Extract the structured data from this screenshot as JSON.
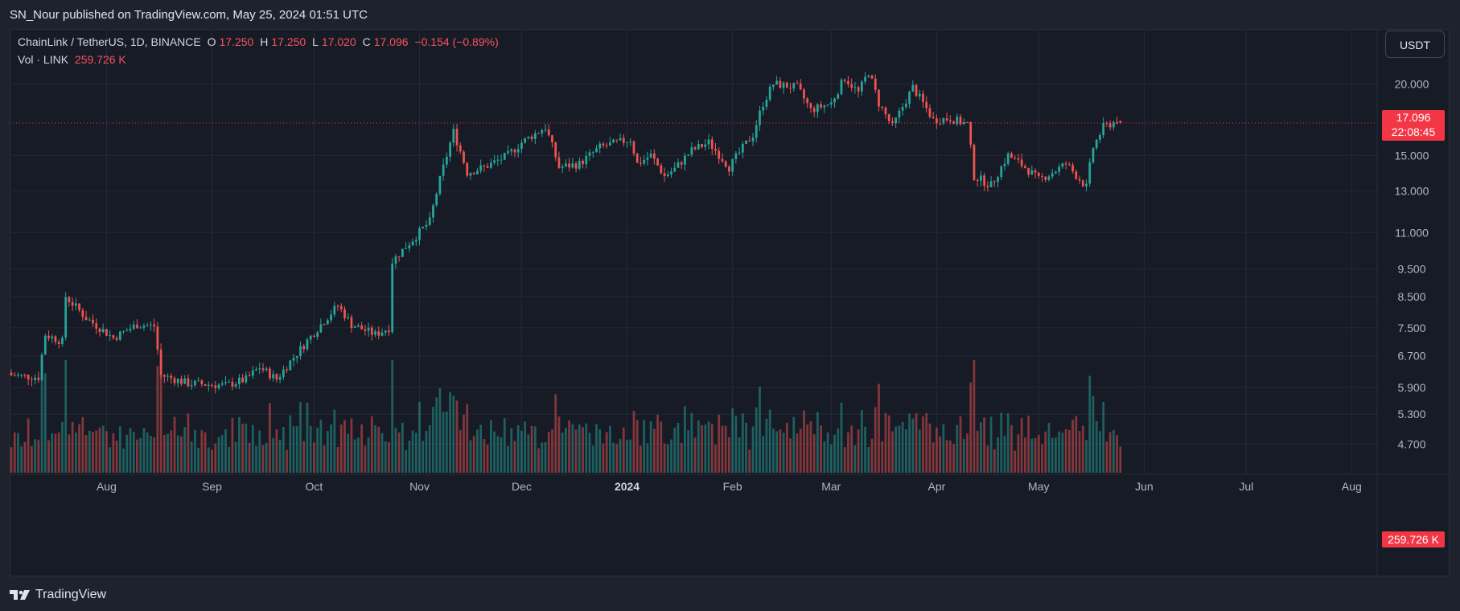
{
  "header": {
    "published_line": "SN_Nour published on TradingView.com, May 25, 2024 01:51 UTC"
  },
  "legend": {
    "symbol": "ChainLink / TetherUS, 1D, BINANCE",
    "o_label": "O",
    "o": "17.250",
    "h_label": "H",
    "h": "17.250",
    "l_label": "L",
    "l": "17.020",
    "c_label": "C",
    "c": "17.096",
    "change": "−0.154 (−0.89%)",
    "vol_label": "Vol · LINK",
    "vol": "259.726 K"
  },
  "currency_button": "USDT",
  "price_badge": {
    "price": "17.096",
    "countdown": "22:08:45"
  },
  "volume_badge": "259.726 K",
  "footer": {
    "brand": "TradingView"
  },
  "colors": {
    "up": "#26a69a",
    "down": "#ef5350",
    "background": "#171b26",
    "grid": "#242936",
    "last_price": "#f23645"
  },
  "chart_data": {
    "type": "candlestick",
    "symbol": "LINK/USDT",
    "timeframe": "1D",
    "y_scale": "log",
    "y_ticks": [
      "20.000",
      "15.000",
      "13.000",
      "11.000",
      "9.500",
      "8.500",
      "7.500",
      "6.700",
      "5.900",
      "5.300",
      "4.700"
    ],
    "x_ticks": [
      {
        "label": "Aug",
        "date": "2023-08-01",
        "bold": false
      },
      {
        "label": "Sep",
        "date": "2023-09-01",
        "bold": false
      },
      {
        "label": "Oct",
        "date": "2023-10-01",
        "bold": false
      },
      {
        "label": "Nov",
        "date": "2023-11-01",
        "bold": false
      },
      {
        "label": "Dec",
        "date": "2023-12-01",
        "bold": false
      },
      {
        "label": "2024",
        "date": "2024-01-01",
        "bold": true
      },
      {
        "label": "Feb",
        "date": "2024-02-01",
        "bold": false
      },
      {
        "label": "Mar",
        "date": "2024-03-01",
        "bold": false
      },
      {
        "label": "Apr",
        "date": "2024-04-01",
        "bold": false
      },
      {
        "label": "May",
        "date": "2024-05-01",
        "bold": false
      },
      {
        "label": "Jun",
        "date": "2024-06-01",
        "bold": false
      },
      {
        "label": "Jul",
        "date": "2024-07-01",
        "bold": false
      },
      {
        "label": "Aug",
        "date": "2024-08-01",
        "bold": false
      }
    ],
    "start_date": "2023-07-04",
    "end_date": "2024-05-25",
    "x_range": [
      "2023-07-04",
      "2024-08-08"
    ],
    "close_anchors": [
      [
        "2023-07-04",
        6.2
      ],
      [
        "2023-07-12",
        6.15
      ],
      [
        "2023-07-14",
        7.3
      ],
      [
        "2023-07-19",
        7.1
      ],
      [
        "2023-07-20",
        8.5
      ],
      [
        "2023-07-26",
        7.8
      ],
      [
        "2023-08-03",
        7.2
      ],
      [
        "2023-08-10",
        7.6
      ],
      [
        "2023-08-15",
        7.55
      ],
      [
        "2023-08-17",
        6.2
      ],
      [
        "2023-08-25",
        6.0
      ],
      [
        "2023-09-05",
        5.95
      ],
      [
        "2023-09-11",
        6.1
      ],
      [
        "2023-09-15",
        6.4
      ],
      [
        "2023-09-20",
        6.1
      ],
      [
        "2023-09-28",
        7.0
      ],
      [
        "2023-10-03",
        7.6
      ],
      [
        "2023-10-08",
        8.2
      ],
      [
        "2023-10-12",
        7.6
      ],
      [
        "2023-10-19",
        7.3
      ],
      [
        "2023-10-23",
        7.5
      ],
      [
        "2023-10-24",
        9.8
      ],
      [
        "2023-10-30",
        10.7
      ],
      [
        "2023-11-04",
        11.5
      ],
      [
        "2023-11-09",
        15.0
      ],
      [
        "2023-11-11",
        16.5
      ],
      [
        "2023-11-15",
        14.0
      ],
      [
        "2023-11-20",
        14.3
      ],
      [
        "2023-11-27",
        15.0
      ],
      [
        "2023-12-01",
        15.8
      ],
      [
        "2023-12-08",
        16.8
      ],
      [
        "2023-12-12",
        14.3
      ],
      [
        "2023-12-18",
        14.5
      ],
      [
        "2023-12-24",
        15.5
      ],
      [
        "2024-01-02",
        16.0
      ],
      [
        "2024-01-04",
        14.5
      ],
      [
        "2024-01-08",
        15.0
      ],
      [
        "2024-01-12",
        13.8
      ],
      [
        "2024-01-15",
        14.2
      ],
      [
        "2024-01-20",
        15.3
      ],
      [
        "2024-01-25",
        15.8
      ],
      [
        "2024-01-31",
        14.3
      ],
      [
        "2024-02-07",
        16.3
      ],
      [
        "2024-02-10",
        18.5
      ],
      [
        "2024-02-13",
        20.0
      ],
      [
        "2024-02-20",
        19.7
      ],
      [
        "2024-02-24",
        18.0
      ],
      [
        "2024-03-01",
        18.5
      ],
      [
        "2024-03-05",
        20.5
      ],
      [
        "2024-03-09",
        19.3
      ],
      [
        "2024-03-12",
        21.0
      ],
      [
        "2024-03-15",
        18.5
      ],
      [
        "2024-03-19",
        16.8
      ],
      [
        "2024-03-25",
        19.7
      ],
      [
        "2024-03-31",
        17.3
      ],
      [
        "2024-04-05",
        17.4
      ],
      [
        "2024-04-10",
        17.0
      ],
      [
        "2024-04-12",
        13.8
      ],
      [
        "2024-04-17",
        13.3
      ],
      [
        "2024-04-22",
        15.0
      ],
      [
        "2024-04-27",
        14.3
      ],
      [
        "2024-05-01",
        13.6
      ],
      [
        "2024-05-05",
        14.0
      ],
      [
        "2024-05-09",
        14.5
      ],
      [
        "2024-05-15",
        13.2
      ],
      [
        "2024-05-17",
        15.5
      ],
      [
        "2024-05-20",
        16.8
      ],
      [
        "2024-05-24",
        17.25
      ],
      [
        "2024-05-25",
        17.096
      ]
    ],
    "volume_max": 6.6,
    "last_bar": {
      "date": "2024-05-25",
      "open": 17.25,
      "high": 17.25,
      "low": 17.02,
      "close": 17.096
    },
    "last_price": 17.096
  }
}
